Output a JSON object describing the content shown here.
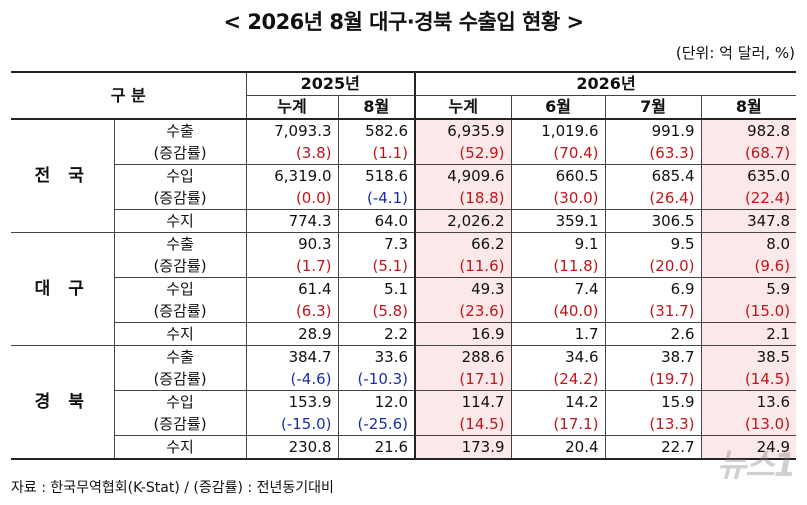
{
  "title": "< 2026년 8월 대구·경북 수출입 현황 >",
  "unit": "(단위: 억 달러, %)",
  "header": {
    "category": "구  분",
    "year1": "2025년",
    "year2": "2026년",
    "cols": [
      "누계",
      "8월",
      "누계",
      "6월",
      "7월",
      "8월"
    ]
  },
  "regions": [
    {
      "name": "전 국",
      "export_label": "수출",
      "export": [
        "7,093.3",
        "582.6",
        "6,935.9",
        "1,019.6",
        "991.9",
        "982.8"
      ],
      "export_rate_label": "(증감률)",
      "export_rate": [
        "(3.8)",
        "(1.1)",
        "(52.9)",
        "(70.4)",
        "(63.3)",
        "(68.7)"
      ],
      "import_label": "수입",
      "import": [
        "6,319.0",
        "518.6",
        "4,909.6",
        "660.5",
        "685.4",
        "635.0"
      ],
      "import_rate_label": "(증감률)",
      "import_rate": [
        "(0.0)",
        "(-4.1)",
        "(18.8)",
        "(30.0)",
        "(26.4)",
        "(22.4)"
      ],
      "balance_label": "수지",
      "balance": [
        "774.3",
        "64.0",
        "2,026.2",
        "359.1",
        "306.5",
        "347.8"
      ]
    },
    {
      "name": "대 구",
      "export_label": "수출",
      "export": [
        "90.3",
        "7.3",
        "66.2",
        "9.1",
        "9.5",
        "8.0"
      ],
      "export_rate_label": "(증감률)",
      "export_rate": [
        "(1.7)",
        "(5.1)",
        "(11.6)",
        "(11.8)",
        "(20.0)",
        "(9.6)"
      ],
      "import_label": "수입",
      "import": [
        "61.4",
        "5.1",
        "49.3",
        "7.4",
        "6.9",
        "5.9"
      ],
      "import_rate_label": "(증감률)",
      "import_rate": [
        "(6.3)",
        "(5.8)",
        "(23.6)",
        "(40.0)",
        "(31.7)",
        "(15.0)"
      ],
      "balance_label": "수지",
      "balance": [
        "28.9",
        "2.2",
        "16.9",
        "1.7",
        "2.6",
        "2.1"
      ]
    },
    {
      "name": "경 북",
      "export_label": "수출",
      "export": [
        "384.7",
        "33.6",
        "288.6",
        "34.6",
        "38.7",
        "38.5"
      ],
      "export_rate_label": "(증감률)",
      "export_rate": [
        "(-4.6)",
        "(-10.3)",
        "(17.1)",
        "(24.2)",
        "(19.7)",
        "(14.5)"
      ],
      "import_label": "수입",
      "import": [
        "153.9",
        "12.0",
        "114.7",
        "14.2",
        "15.9",
        "13.6"
      ],
      "import_rate_label": "(증감률)",
      "import_rate": [
        "(-15.0)",
        "(-25.6)",
        "(14.5)",
        "(17.1)",
        "(13.3)",
        "(13.0)"
      ],
      "balance_label": "수지",
      "balance": [
        "230.8",
        "21.6",
        "173.9",
        "20.4",
        "22.7",
        "24.9"
      ]
    }
  ],
  "source": "자료 : 한국무역협회(K-Stat) / (증감률) : 전년동기대비",
  "watermark": "뉴스1",
  "colors": {
    "negative_rate": "#1a2fa8",
    "positive_rate": "#c0151b",
    "highlight_bg": "#fbe9ea"
  }
}
